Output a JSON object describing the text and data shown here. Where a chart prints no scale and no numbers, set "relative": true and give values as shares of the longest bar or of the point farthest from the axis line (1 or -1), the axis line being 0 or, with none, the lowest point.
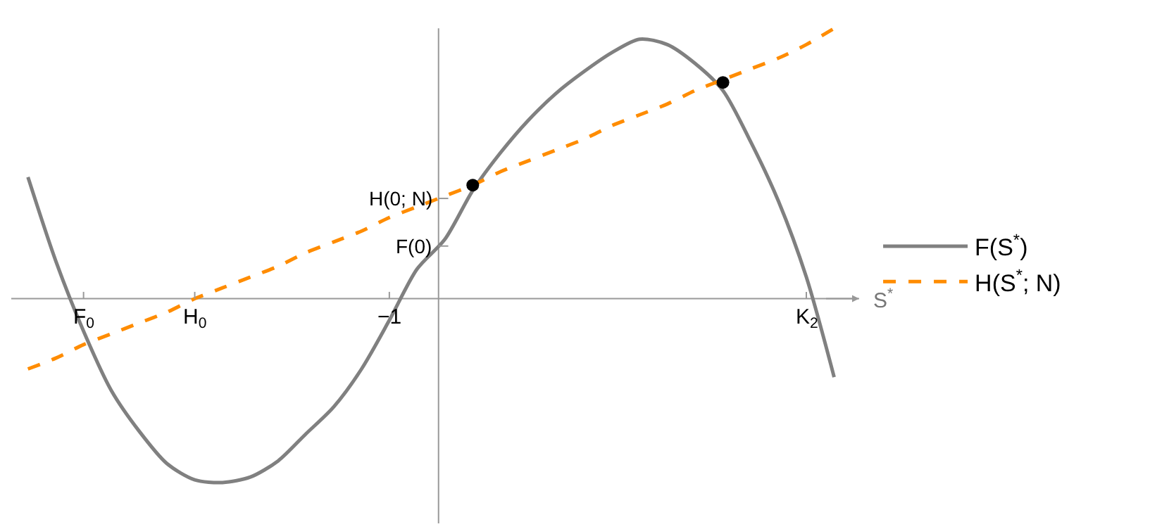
{
  "chart_data": {
    "type": "line",
    "relative": true,
    "xlabel": "S$^{*}$",
    "categories": [
      null,
      null,
      "F$_{0}$",
      null,
      null,
      null,
      "H$_{0}$",
      null,
      null,
      null,
      null,
      null,
      null,
      "−1",
      null,
      null,
      null,
      null,
      null,
      null,
      null,
      null,
      null,
      null,
      null,
      null,
      null,
      null,
      "K$_{2}$",
      null
    ],
    "series": [
      {
        "name": "F(S$^{*}$)",
        "color": "#808080",
        "line_style": "solid",
        "values": [
          0.45,
          0.14,
          -0.12,
          -0.34,
          -0.49,
          -0.61,
          -0.67,
          -0.68,
          -0.66,
          -0.6,
          -0.5,
          -0.4,
          -0.26,
          -0.08,
          0.11,
          0.22,
          0.4,
          0.54,
          0.66,
          0.76,
          0.84,
          0.91,
          0.96,
          0.94,
          0.87,
          0.77,
          0.58,
          0.36,
          0.08,
          -0.29
        ]
      },
      {
        "name": "H(S$^{*}$; N)",
        "color": "#ff8c00",
        "line_style": "dashed",
        "values": [
          -0.26,
          -0.22,
          -0.17,
          -0.13,
          -0.09,
          -0.05,
          0.0,
          0.04,
          0.08,
          0.12,
          0.17,
          0.21,
          0.25,
          0.3,
          0.34,
          0.38,
          0.42,
          0.47,
          0.51,
          0.55,
          0.59,
          0.64,
          0.68,
          0.72,
          0.77,
          0.81,
          0.85,
          0.89,
          0.94,
          1.0
        ]
      },
      {
        "type": "scatter",
        "color": "#000000",
        "marker": "circle",
        "values": [
          null,
          null,
          null,
          null,
          null,
          null,
          null,
          null,
          null,
          null,
          null,
          null,
          null,
          null,
          null,
          null,
          0.42,
          null,
          null,
          null,
          null,
          null,
          null,
          null,
          null,
          0.8,
          null,
          null,
          null,
          null
        ]
      }
    ],
    "annotations": [
      "F(0)",
      "H(0; N)"
    ],
    "legend": "right"
  }
}
